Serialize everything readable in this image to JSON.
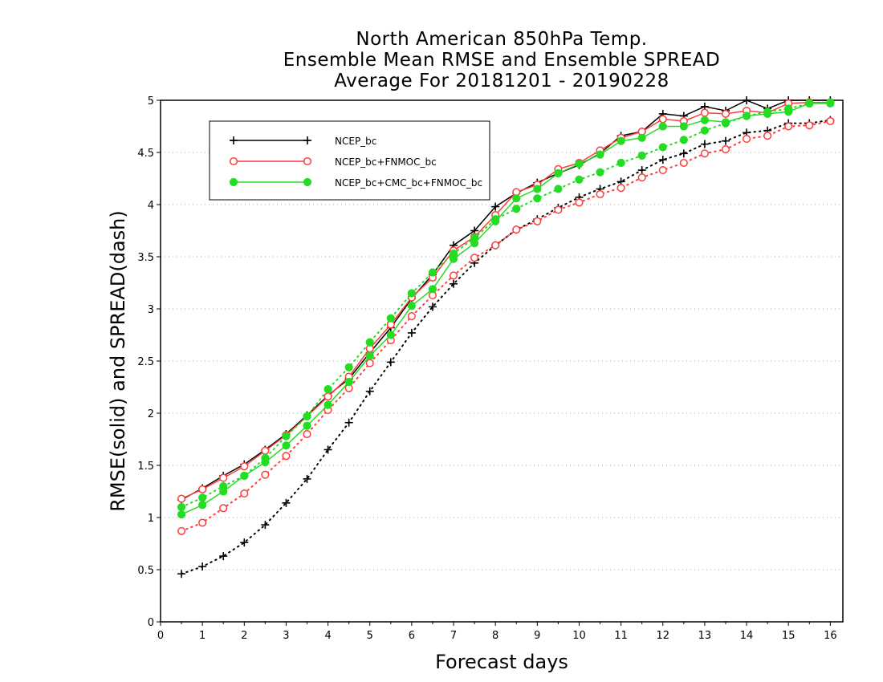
{
  "chart_data": {
    "type": "line",
    "title_lines": [
      "North American 850hPa Temp.",
      "Ensemble Mean RMSE and Ensemble SPREAD",
      "Average For 20181201 - 20190228"
    ],
    "xlabel": "Forecast days",
    "ylabel": "RMSE(solid) and SPREAD(dash)",
    "xlim": [
      0,
      16.3
    ],
    "ylim": [
      0,
      5
    ],
    "x_ticks": [
      "0",
      "1",
      "2",
      "3",
      "4",
      "5",
      "6",
      "7",
      "8",
      "9",
      "10",
      "11",
      "12",
      "13",
      "14",
      "15",
      "16"
    ],
    "y_ticks": [
      "0",
      "0.5",
      "1",
      "1.5",
      "2",
      "2.5",
      "3",
      "3.5",
      "4",
      "4.5",
      "5"
    ],
    "grid": "horizontal dotted",
    "legend_position": "top-left",
    "x": [
      0.5,
      1,
      1.5,
      2,
      2.5,
      3,
      3.5,
      4,
      4.5,
      5,
      5.5,
      6,
      6.5,
      7,
      7.5,
      8,
      8.5,
      9,
      9.5,
      10,
      10.5,
      11,
      11.5,
      12,
      12.5,
      13,
      13.5,
      14,
      14.5,
      15,
      15.5,
      16
    ],
    "series": [
      {
        "name": "NCEP_bc",
        "color": "#000000",
        "marker": "plus",
        "rmse": [
          1.17,
          1.28,
          1.4,
          1.51,
          1.65,
          1.8,
          1.98,
          2.17,
          2.33,
          2.58,
          2.82,
          3.1,
          3.33,
          3.61,
          3.75,
          3.98,
          4.11,
          4.21,
          4.3,
          4.38,
          4.49,
          4.66,
          4.7,
          4.87,
          4.85,
          4.94,
          4.9,
          5.0,
          4.92,
          5.0,
          5.0,
          5.0
        ],
        "spread": [
          0.46,
          0.53,
          0.63,
          0.76,
          0.93,
          1.14,
          1.37,
          1.65,
          1.91,
          2.21,
          2.49,
          2.77,
          3.02,
          3.24,
          3.44,
          3.61,
          3.76,
          3.86,
          3.97,
          4.07,
          4.15,
          4.22,
          4.33,
          4.43,
          4.49,
          4.58,
          4.61,
          4.69,
          4.71,
          4.78,
          4.78,
          4.81
        ]
      },
      {
        "name": "NCEP_bc+FNMOC_bc",
        "color": "#ff3c3c",
        "marker": "open-circle",
        "rmse": [
          1.18,
          1.27,
          1.38,
          1.49,
          1.64,
          1.79,
          1.97,
          2.16,
          2.35,
          2.62,
          2.85,
          3.11,
          3.3,
          3.56,
          3.69,
          3.9,
          4.12,
          4.19,
          4.34,
          4.4,
          4.52,
          4.64,
          4.7,
          4.82,
          4.8,
          4.88,
          4.87,
          4.9,
          4.88,
          4.97,
          4.98,
          4.98
        ],
        "spread": [
          0.87,
          0.95,
          1.09,
          1.23,
          1.41,
          1.59,
          1.8,
          2.03,
          2.24,
          2.48,
          2.7,
          2.93,
          3.13,
          3.32,
          3.49,
          3.61,
          3.76,
          3.84,
          3.95,
          4.02,
          4.1,
          4.16,
          4.26,
          4.33,
          4.4,
          4.49,
          4.53,
          4.63,
          4.66,
          4.75,
          4.76,
          4.8
        ]
      },
      {
        "name": "NCEP_bc+CMC_bc+FNMOC_bc",
        "color": "#22dd22",
        "marker": "filled-circle",
        "rmse": [
          1.03,
          1.12,
          1.25,
          1.4,
          1.53,
          1.69,
          1.88,
          2.08,
          2.3,
          2.55,
          2.75,
          3.03,
          3.19,
          3.48,
          3.63,
          3.84,
          4.06,
          4.15,
          4.3,
          4.39,
          4.48,
          4.61,
          4.64,
          4.75,
          4.75,
          4.81,
          4.79,
          4.85,
          4.87,
          4.89,
          4.97,
          4.97
        ],
        "spread": [
          1.1,
          1.19,
          1.3,
          1.4,
          1.57,
          1.78,
          1.97,
          2.23,
          2.44,
          2.68,
          2.91,
          3.15,
          3.35,
          3.53,
          3.68,
          3.86,
          3.96,
          4.06,
          4.15,
          4.24,
          4.31,
          4.4,
          4.47,
          4.55,
          4.62,
          4.71,
          4.78,
          4.85,
          4.89,
          4.92,
          4.97,
          4.98
        ]
      }
    ]
  }
}
